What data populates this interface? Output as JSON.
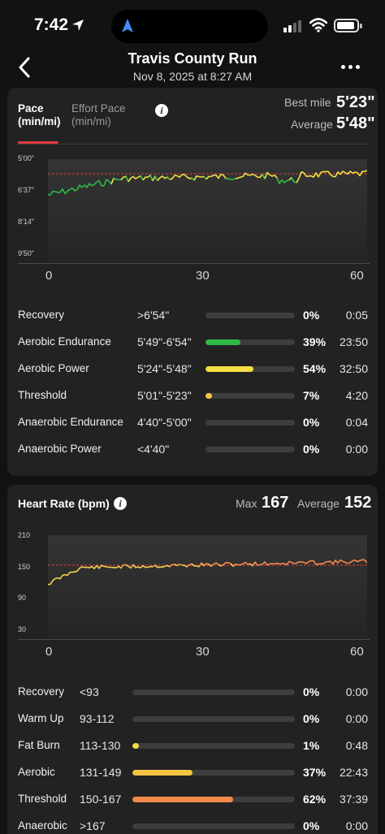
{
  "status": {
    "time": "7:42",
    "signal_bars": 2,
    "signal_total": 4,
    "battery_level": 0.75
  },
  "nav": {
    "title": "Travis County Run",
    "subtitle": "Nov 8, 2025 at 8:27 AM"
  },
  "pace": {
    "tabs": [
      {
        "label": "Pace\n(min/mi)",
        "active": true
      },
      {
        "label": "Effort Pace\n(min/mi)",
        "active": false
      }
    ],
    "best_label": "Best mile",
    "best_value": "5'23\"",
    "avg_label": "Average",
    "avg_value": "5'48\"",
    "y_ticks": [
      "5'00\"",
      "6'37\"",
      "8'14\"",
      "9'50\""
    ],
    "x_ticks": [
      "0",
      "30",
      "60"
    ],
    "zones": [
      {
        "name": "Recovery",
        "range": ">6'54\"",
        "fraction": 0.0,
        "color": "#58c23f",
        "pct": "0%",
        "time": "0:05"
      },
      {
        "name": "Aerobic Endurance",
        "range": "5'49\"-6'54\"",
        "fraction": 0.39,
        "color": "#2fb84a",
        "pct": "39%",
        "time": "23:50"
      },
      {
        "name": "Aerobic Power",
        "range": "5'24\"-5'48\"",
        "fraction": 0.54,
        "color": "#f2de42",
        "pct": "54%",
        "time": "32:50"
      },
      {
        "name": "Threshold",
        "range": "5'01\"-5'23\"",
        "fraction": 0.07,
        "color": "#f5c542",
        "pct": "7%",
        "time": "4:20"
      },
      {
        "name": "Anaerobic Endurance",
        "range": "4'40\"-5'00\"",
        "fraction": 0.0,
        "color": "#f28b3c",
        "pct": "0%",
        "time": "0:04"
      },
      {
        "name": "Anaerobic Power",
        "range": "<4'40\"",
        "fraction": 0.0,
        "color": "#e8443a",
        "pct": "0%",
        "time": "0:00"
      }
    ]
  },
  "hr": {
    "title": "Heart Rate (bpm)",
    "max_label": "Max",
    "max_value": "167",
    "avg_label": "Average",
    "avg_value": "152",
    "y_ticks": [
      "210",
      "150",
      "90",
      "30"
    ],
    "x_ticks": [
      "0",
      "30",
      "60"
    ],
    "zones": [
      {
        "name": "Recovery",
        "range": "<93",
        "fraction": 0.0,
        "color": "#9a9a9a",
        "pct": "0%",
        "time": "0:00"
      },
      {
        "name": "Warm Up",
        "range": "93-112",
        "fraction": 0.0,
        "color": "#58a8e8",
        "pct": "0%",
        "time": "0:00"
      },
      {
        "name": "Fat Burn",
        "range": "113-130",
        "fraction": 0.01,
        "color": "#f2de42",
        "pct": "1%",
        "time": "0:48"
      },
      {
        "name": "Aerobic",
        "range": "131-149",
        "fraction": 0.37,
        "color": "#f5c542",
        "pct": "37%",
        "time": "22:43"
      },
      {
        "name": "Threshold",
        "range": "150-167",
        "fraction": 0.62,
        "color": "#f28b4c",
        "pct": "62%",
        "time": "37:39"
      },
      {
        "name": "Anaerobic",
        "range": ">167",
        "fraction": 0.0,
        "color": "#e8443a",
        "pct": "0%",
        "time": "0:00"
      }
    ]
  },
  "colors": {
    "accent": "#e03a3e",
    "pace_green": "#2fb84a",
    "pace_yellow": "#f2de42",
    "hr_yellow": "#f5d04a",
    "hr_orange": "#f28b4c"
  }
}
